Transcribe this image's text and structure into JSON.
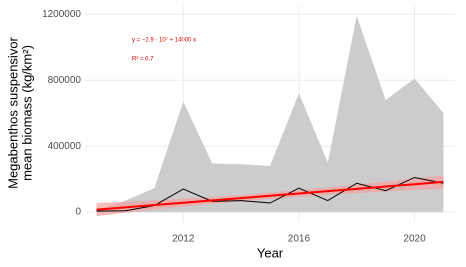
{
  "chart_data": {
    "type": "line",
    "x_label": "Year",
    "y_label": [
      "Megabenthos suspensivor",
      "mean biomass (kg/km²)"
    ],
    "annotations": [
      "y = −2.9 · 10⁷ + 14000 x",
      "R² = 0.7"
    ],
    "x": [
      2009,
      2010,
      2011,
      2012,
      2013,
      2014,
      2015,
      2016,
      2017,
      2018,
      2019,
      2020,
      2021
    ],
    "values": [
      6000,
      8000,
      40000,
      140000,
      65000,
      70000,
      55000,
      145000,
      70000,
      175000,
      130000,
      210000,
      175000
    ],
    "color": "#000000",
    "ribbon_upper": [
      12000,
      70000,
      145000,
      670000,
      295000,
      290000,
      280000,
      720000,
      300000,
      1190000,
      680000,
      810000,
      600000
    ],
    "ribbon_lower": [
      0,
      0,
      0,
      0,
      0,
      0,
      0,
      0,
      0,
      0,
      0,
      0,
      0
    ],
    "ribbon_color": "#cccccc",
    "trend": [
      15000,
      29000,
      43000,
      57000,
      71000,
      85000,
      99000,
      113000,
      127000,
      141000,
      155000,
      169000,
      183000
    ],
    "trend_lower": [
      -25000,
      -4000,
      15000,
      33000,
      50000,
      66000,
      80000,
      93000,
      104000,
      115000,
      125000,
      134000,
      143000
    ],
    "trend_upper": [
      55000,
      62000,
      71000,
      81000,
      92000,
      104000,
      118000,
      133000,
      150000,
      167000,
      185000,
      204000,
      223000
    ],
    "trend_color": "#ff0000",
    "trend_band_color": "#f4a0a0",
    "xlim": [
      2008.6,
      2021.4
    ],
    "xticks": [
      2012,
      2016,
      2020
    ],
    "ylim": [
      -60000,
      1250000
    ],
    "yticks": [
      0,
      400000,
      800000,
      1200000
    ],
    "grid": true
  }
}
